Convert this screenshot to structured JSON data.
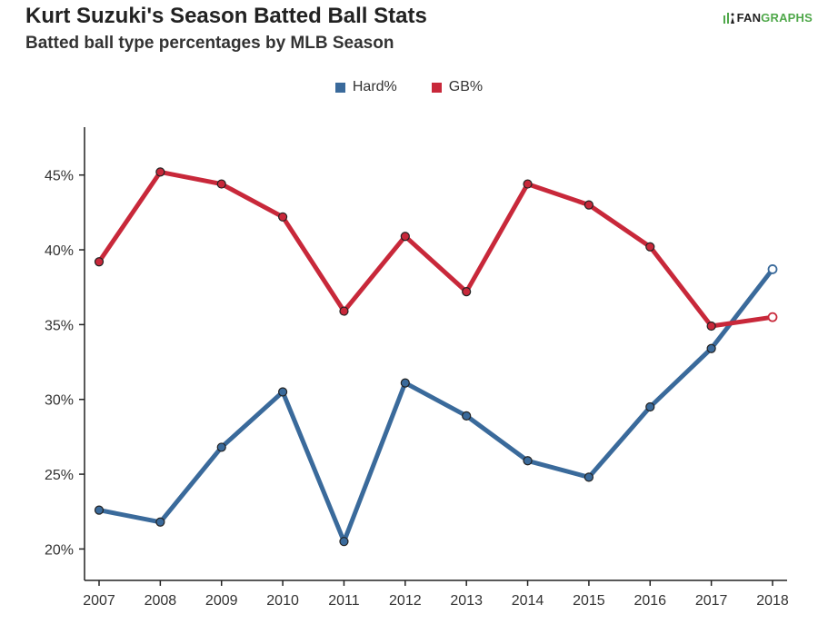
{
  "header": {
    "title": "Kurt Suzuki's Season Batted Ball Stats",
    "subtitle": "Batted ball type percentages by MLB Season",
    "logo_text_1": "FAN",
    "logo_text_2": "GRAPHS"
  },
  "colors": {
    "hard": "#3a6a9b",
    "gb": "#c8283a",
    "axis": "#222222"
  },
  "chart_data": {
    "type": "line",
    "categories": [
      "2007",
      "2008",
      "2009",
      "2010",
      "2011",
      "2012",
      "2013",
      "2014",
      "2015",
      "2016",
      "2017",
      "2018"
    ],
    "series": [
      {
        "name": "Hard%",
        "values": [
          22.6,
          21.8,
          26.8,
          30.5,
          20.5,
          31.1,
          28.9,
          25.9,
          24.8,
          29.5,
          33.4,
          38.7
        ]
      },
      {
        "name": "GB%",
        "values": [
          39.2,
          45.2,
          44.4,
          42.2,
          35.9,
          40.9,
          37.2,
          44.4,
          43.0,
          40.2,
          34.9,
          35.5
        ]
      }
    ],
    "y_ticks": [
      20,
      25,
      30,
      35,
      40,
      45
    ],
    "y_tick_labels": [
      "20%",
      "25%",
      "30%",
      "35%",
      "40%",
      "45%"
    ],
    "ylim": [
      17.9,
      48.2
    ],
    "last_point_hollow": true,
    "legend_placement": "top-center",
    "grid": false
  }
}
